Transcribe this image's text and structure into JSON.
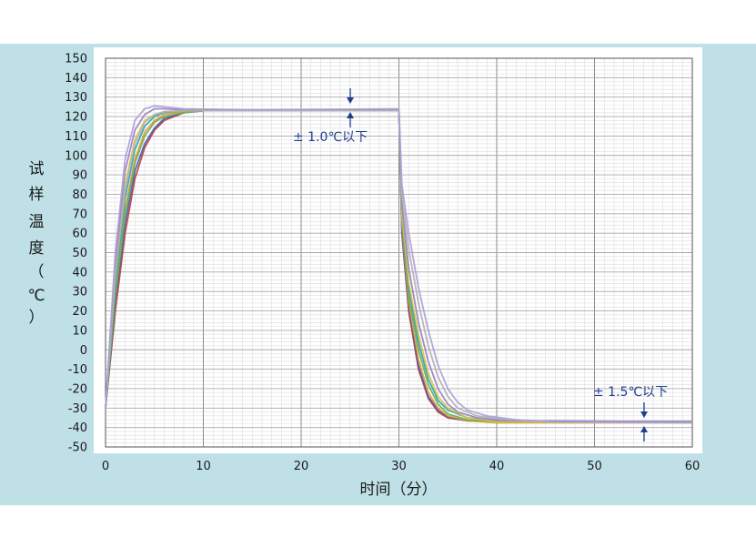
{
  "chart_data": {
    "type": "line",
    "xlabel": "时间（分）",
    "ylabel_chars": [
      "试",
      "样",
      "温",
      "度",
      "（",
      "℃",
      "）"
    ],
    "xlim": [
      0,
      60
    ],
    "ylim": [
      -50,
      150
    ],
    "x_ticks": [
      "0",
      "10",
      "20",
      "30",
      "40",
      "50",
      "60"
    ],
    "y_ticks": [
      "150",
      "140",
      "130",
      "120",
      "110",
      "100",
      "90",
      "80",
      "70",
      "60",
      "50",
      "40",
      "30",
      "20",
      "10",
      "0",
      "-10",
      "-20",
      "-30",
      "-40",
      "-50"
    ],
    "grid": true,
    "annotations": [
      {
        "text": "± 1.0℃以下",
        "x": 25,
        "y": 123
      },
      {
        "text": "± 1.5℃以下",
        "x": 55,
        "y": -37
      }
    ],
    "series": [
      {
        "color": "#c03a3a",
        "points": [
          [
            0,
            -30
          ],
          [
            1,
            20
          ],
          [
            2,
            60
          ],
          [
            3,
            88
          ],
          [
            4,
            104
          ],
          [
            5,
            113
          ],
          [
            6,
            118
          ],
          [
            8,
            122
          ],
          [
            10,
            123
          ],
          [
            15,
            123
          ],
          [
            30,
            123
          ],
          [
            30.3,
            60
          ],
          [
            31,
            20
          ],
          [
            32,
            -10
          ],
          [
            33,
            -25
          ],
          [
            34,
            -32
          ],
          [
            35,
            -35
          ],
          [
            37,
            -36.5
          ],
          [
            40,
            -37
          ],
          [
            60,
            -37
          ]
        ]
      },
      {
        "color": "#3b5fb0",
        "points": [
          [
            0,
            -30
          ],
          [
            1,
            25
          ],
          [
            2,
            65
          ],
          [
            3,
            92
          ],
          [
            4,
            106
          ],
          [
            5,
            114
          ],
          [
            6,
            119
          ],
          [
            8,
            122
          ],
          [
            10,
            123
          ],
          [
            15,
            123
          ],
          [
            30,
            123
          ],
          [
            30.3,
            62
          ],
          [
            31,
            22
          ],
          [
            32,
            -8
          ],
          [
            33,
            -24
          ],
          [
            34,
            -31
          ],
          [
            35,
            -34.5
          ],
          [
            37,
            -36.5
          ],
          [
            40,
            -37
          ],
          [
            60,
            -37
          ]
        ]
      },
      {
        "color": "#e89a3a",
        "points": [
          [
            0,
            -30
          ],
          [
            1,
            30
          ],
          [
            2,
            72
          ],
          [
            3,
            98
          ],
          [
            4,
            112
          ],
          [
            5,
            118
          ],
          [
            6,
            121
          ],
          [
            8,
            122.5
          ],
          [
            10,
            123
          ],
          [
            15,
            123
          ],
          [
            30,
            123
          ],
          [
            30.3,
            65
          ],
          [
            31,
            25
          ],
          [
            32,
            -5
          ],
          [
            33,
            -22
          ],
          [
            34,
            -30
          ],
          [
            35,
            -34
          ],
          [
            37,
            -36.5
          ],
          [
            40,
            -37.5
          ],
          [
            60,
            -37.5
          ]
        ]
      },
      {
        "color": "#6fae4a",
        "points": [
          [
            0,
            -30
          ],
          [
            1,
            28
          ],
          [
            2,
            70
          ],
          [
            3,
            96
          ],
          [
            4,
            110
          ],
          [
            5,
            117
          ],
          [
            6,
            120
          ],
          [
            8,
            122
          ],
          [
            10,
            123
          ],
          [
            15,
            123
          ],
          [
            30,
            123
          ],
          [
            30.3,
            66
          ],
          [
            31,
            28
          ],
          [
            32,
            0
          ],
          [
            33,
            -18
          ],
          [
            34,
            -28
          ],
          [
            35,
            -33
          ],
          [
            37,
            -36
          ],
          [
            40,
            -37
          ],
          [
            60,
            -37
          ]
        ]
      },
      {
        "color": "#2ba0b8",
        "points": [
          [
            0,
            -30
          ],
          [
            1,
            35
          ],
          [
            2,
            78
          ],
          [
            3,
            103
          ],
          [
            4,
            115
          ],
          [
            5,
            120
          ],
          [
            6,
            122
          ],
          [
            8,
            123
          ],
          [
            15,
            123
          ],
          [
            30,
            123.5
          ],
          [
            30.3,
            68
          ],
          [
            31,
            32
          ],
          [
            32,
            4
          ],
          [
            33,
            -15
          ],
          [
            34,
            -26
          ],
          [
            35,
            -31
          ],
          [
            37,
            -35
          ],
          [
            40,
            -36.5
          ],
          [
            60,
            -37
          ]
        ]
      },
      {
        "color": "#d6c640",
        "points": [
          [
            0,
            -30
          ],
          [
            1,
            40
          ],
          [
            2,
            85
          ],
          [
            3,
            108
          ],
          [
            4,
            118
          ],
          [
            5,
            121
          ],
          [
            6,
            122.5
          ],
          [
            8,
            123
          ],
          [
            15,
            123
          ],
          [
            30,
            123
          ],
          [
            30.3,
            70
          ],
          [
            31,
            35
          ],
          [
            32,
            8
          ],
          [
            33,
            -12
          ],
          [
            34,
            -24
          ],
          [
            35,
            -30
          ],
          [
            37,
            -35
          ],
          [
            40,
            -37
          ],
          [
            60,
            -37.5
          ]
        ]
      },
      {
        "color": "#9a7cc4",
        "points": [
          [
            0,
            -30
          ],
          [
            1,
            45
          ],
          [
            2,
            92
          ],
          [
            3,
            113
          ],
          [
            4,
            121
          ],
          [
            5,
            124
          ],
          [
            6,
            124
          ],
          [
            8,
            123.5
          ],
          [
            15,
            123
          ],
          [
            30,
            123.5
          ],
          [
            30.3,
            75
          ],
          [
            31,
            42
          ],
          [
            32,
            14
          ],
          [
            33,
            -6
          ],
          [
            34,
            -20
          ],
          [
            35,
            -28
          ],
          [
            36,
            -32
          ],
          [
            38,
            -35
          ],
          [
            41,
            -36.5
          ],
          [
            60,
            -37
          ]
        ]
      },
      {
        "color": "#b0b0b0",
        "points": [
          [
            0,
            -30
          ],
          [
            1,
            38
          ],
          [
            2,
            82
          ],
          [
            3,
            106
          ],
          [
            4,
            117
          ],
          [
            5,
            121
          ],
          [
            6,
            122.5
          ],
          [
            8,
            123
          ],
          [
            15,
            123
          ],
          [
            30,
            123
          ],
          [
            30.3,
            80
          ],
          [
            31,
            52
          ],
          [
            32,
            24
          ],
          [
            33,
            2
          ],
          [
            34,
            -14
          ],
          [
            35,
            -24
          ],
          [
            36,
            -30
          ],
          [
            38,
            -34
          ],
          [
            41,
            -36
          ],
          [
            45,
            -37
          ],
          [
            60,
            -37.5
          ]
        ]
      },
      {
        "color": "#a8a0d8",
        "points": [
          [
            0,
            -30
          ],
          [
            1,
            50
          ],
          [
            2,
            98
          ],
          [
            3,
            118
          ],
          [
            4,
            124
          ],
          [
            5,
            125.5
          ],
          [
            6,
            125
          ],
          [
            8,
            124
          ],
          [
            15,
            123.5
          ],
          [
            30,
            124
          ],
          [
            30.3,
            85
          ],
          [
            31,
            60
          ],
          [
            32,
            32
          ],
          [
            33,
            10
          ],
          [
            34,
            -8
          ],
          [
            35,
            -20
          ],
          [
            36,
            -27
          ],
          [
            37,
            -31
          ],
          [
            39,
            -34
          ],
          [
            42,
            -36
          ],
          [
            46,
            -37
          ],
          [
            60,
            -37.5
          ]
        ]
      }
    ]
  }
}
